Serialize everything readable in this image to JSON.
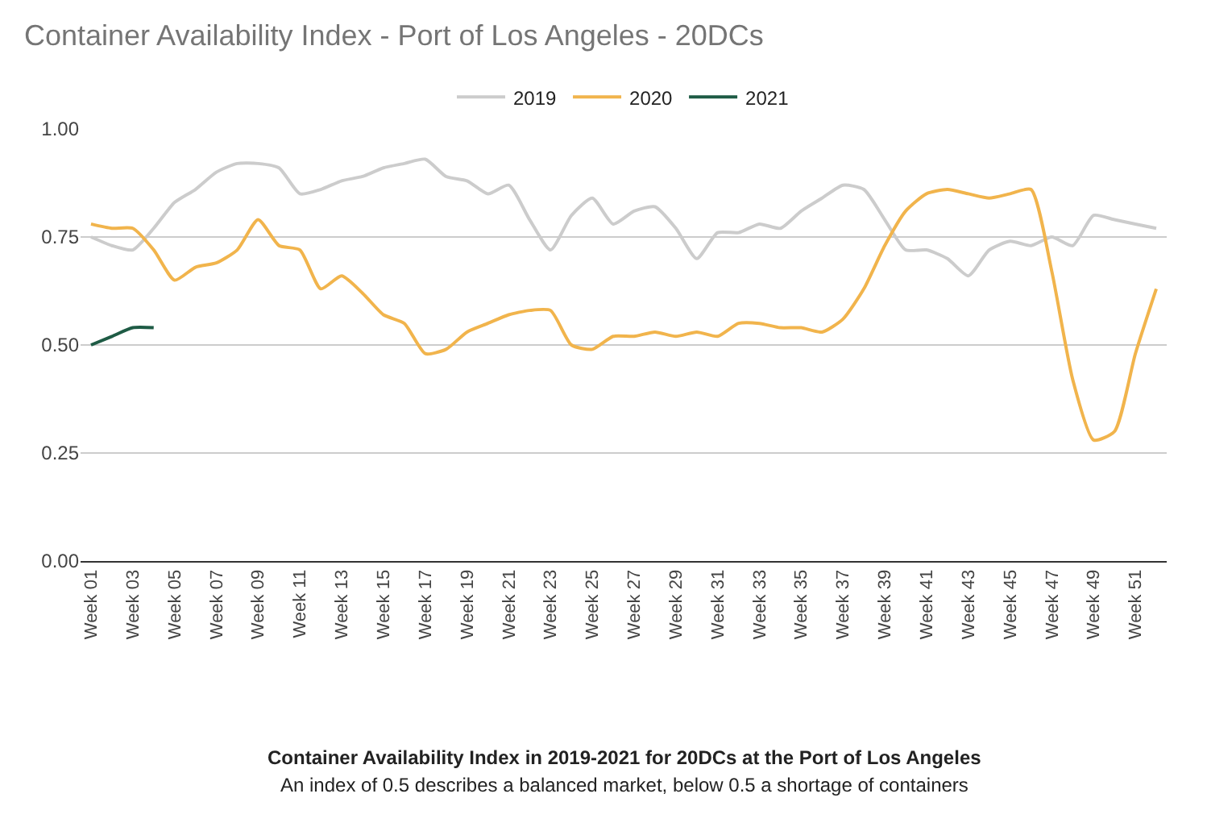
{
  "chart_data": {
    "type": "line",
    "title": "Container Availability Index - Port of Los Angeles - 20DCs",
    "categories": [
      "Week 01",
      null,
      "Week 03",
      null,
      "Week 05",
      null,
      "Week 07",
      null,
      "Week 09",
      null,
      "Week 11",
      null,
      "Week 13",
      null,
      "Week 15",
      null,
      "Week 17",
      null,
      "Week 19",
      null,
      "Week 21",
      null,
      "Week 23",
      null,
      "Week 25",
      null,
      "Week 27",
      null,
      "Week 29",
      null,
      "Week 31",
      null,
      "Week 33",
      null,
      "Week 35",
      null,
      "Week 37",
      null,
      "Week 39",
      null,
      "Week 41",
      null,
      "Week 43",
      null,
      "Week 45",
      null,
      "Week 47",
      null,
      "Week 49",
      null,
      "Week 51",
      null
    ],
    "series": [
      {
        "name": "2019",
        "color": "#cccccc",
        "values": [
          0.75,
          0.73,
          0.72,
          0.77,
          0.83,
          0.86,
          0.9,
          0.92,
          0.92,
          0.91,
          0.85,
          0.86,
          0.88,
          0.89,
          0.91,
          0.92,
          0.93,
          0.89,
          0.88,
          0.85,
          0.87,
          0.79,
          0.72,
          0.8,
          0.84,
          0.78,
          0.81,
          0.82,
          0.77,
          0.7,
          0.76,
          0.76,
          0.78,
          0.77,
          0.81,
          0.84,
          0.87,
          0.86,
          0.79,
          0.72,
          0.72,
          0.7,
          0.66,
          0.72,
          0.74,
          0.73,
          0.75,
          0.73,
          0.8,
          0.79,
          0.78,
          0.77
        ]
      },
      {
        "name": "2020",
        "color": "#f1b44c",
        "values": [
          0.78,
          0.77,
          0.77,
          0.72,
          0.65,
          0.68,
          0.69,
          0.72,
          0.79,
          0.73,
          0.72,
          0.63,
          0.66,
          0.62,
          0.57,
          0.55,
          0.48,
          0.49,
          0.53,
          0.55,
          0.57,
          0.58,
          0.58,
          0.5,
          0.49,
          0.52,
          0.52,
          0.53,
          0.52,
          0.53,
          0.52,
          0.55,
          0.55,
          0.54,
          0.54,
          0.53,
          0.56,
          0.63,
          0.73,
          0.81,
          0.85,
          0.86,
          0.85,
          0.84,
          0.85,
          0.86,
          0.67,
          0.42,
          0.28,
          0.3,
          0.48,
          0.63
        ]
      },
      {
        "name": "2021",
        "color": "#1e5b45",
        "values": [
          0.5,
          0.52,
          0.54,
          0.54,
          null,
          null,
          null,
          null,
          null,
          null,
          null,
          null,
          null,
          null,
          null,
          null,
          null,
          null,
          null,
          null,
          null,
          null,
          null,
          null,
          null,
          null,
          null,
          null,
          null,
          null,
          null,
          null,
          null,
          null,
          null,
          null,
          null,
          null,
          null,
          null,
          null,
          null,
          null,
          null,
          null,
          null,
          null,
          null,
          null,
          null,
          null,
          null
        ]
      }
    ],
    "ylim": [
      0,
      1.0
    ],
    "yticks": [
      {
        "value": 0,
        "label": "0.00"
      },
      {
        "value": 0.25,
        "label": "0.25"
      },
      {
        "value": 0.5,
        "label": "0.50"
      },
      {
        "value": 0.75,
        "label": "0.75"
      },
      {
        "value": 1.0,
        "label": "1.00"
      }
    ],
    "grid": "y",
    "legend": "top",
    "marker": "none",
    "line_style": "solid",
    "annotations": [
      "Container Availability Index in 2019-2021 for 20DCs at the Port of Los Angeles",
      "An index of 0.5 describes a balanced market, below 0.5 a shortage of containers"
    ]
  }
}
